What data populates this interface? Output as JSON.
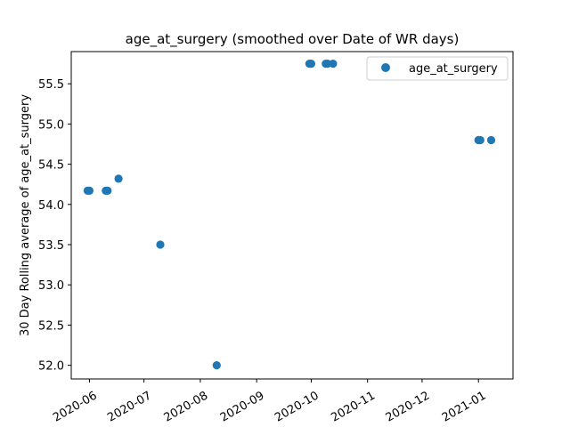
{
  "chart_data": {
    "type": "scatter",
    "title": "age_at_surgery (smoothed over Date of WR days)",
    "xlabel": "",
    "ylabel": "30 Day Rolling average of age_at_surgery",
    "x_type": "date",
    "xlim": [
      "2020-05-22",
      "2021-01-20"
    ],
    "ylim": [
      51.83,
      55.9
    ],
    "x_ticks": [
      "2020-06",
      "2020-07",
      "2020-08",
      "2020-09",
      "2020-10",
      "2020-11",
      "2020-12",
      "2021-01"
    ],
    "y_ticks": [
      52.0,
      52.5,
      53.0,
      53.5,
      54.0,
      54.5,
      55.0,
      55.5
    ],
    "y_tick_labels": [
      "52.0",
      "52.5",
      "53.0",
      "53.5",
      "54.0",
      "54.5",
      "55.0",
      "55.5"
    ],
    "grid": false,
    "legend_position": "top-right",
    "color": "#1f77b4",
    "series": [
      {
        "name": "age_at_surgery",
        "points": [
          {
            "x": "2020-05-31",
            "y": 54.17
          },
          {
            "x": "2020-06-01",
            "y": 54.17
          },
          {
            "x": "2020-06-10",
            "y": 54.17
          },
          {
            "x": "2020-06-11",
            "y": 54.17
          },
          {
            "x": "2020-06-17",
            "y": 54.32
          },
          {
            "x": "2020-07-10",
            "y": 53.5
          },
          {
            "x": "2020-08-10",
            "y": 52.0
          },
          {
            "x": "2020-09-30",
            "y": 55.75
          },
          {
            "x": "2020-10-01",
            "y": 55.75
          },
          {
            "x": "2020-10-09",
            "y": 55.75
          },
          {
            "x": "2020-10-10",
            "y": 55.75
          },
          {
            "x": "2020-10-13",
            "y": 55.75
          },
          {
            "x": "2021-01-01",
            "y": 54.8
          },
          {
            "x": "2021-01-02",
            "y": 54.8
          },
          {
            "x": "2021-01-08",
            "y": 54.8
          }
        ]
      }
    ]
  }
}
